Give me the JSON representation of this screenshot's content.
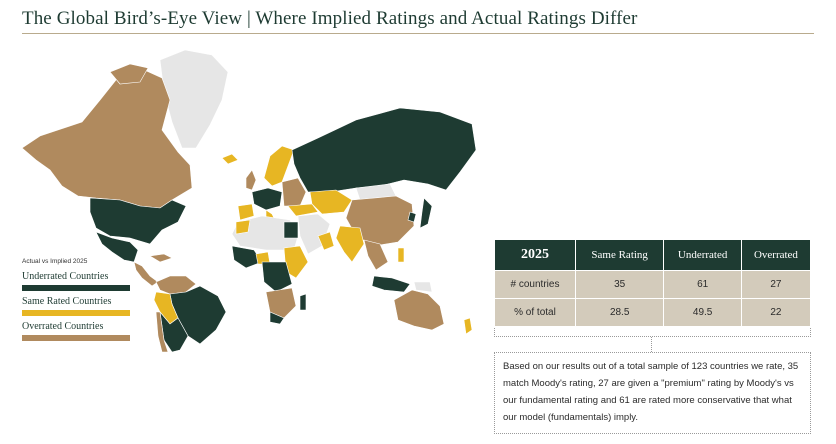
{
  "title": "The Global Bird’s-Eye View | Where Implied Ratings and Actual Ratings Differ",
  "colors": {
    "underrated": "#1e3b32",
    "same_rated": "#e7b623",
    "overrated": "#b08a5e",
    "no_data": "#e6e6e6",
    "title": "#1e3b32",
    "table_header": "#1e3b32",
    "table_cell": "#d3cbbb"
  },
  "legend": {
    "heading": "Actual vs Implied 2025",
    "items": [
      {
        "label": "Underrated Countries",
        "color": "#1e3b32"
      },
      {
        "label": "Same Rated Countries",
        "color": "#e7b623"
      },
      {
        "label": "Overrated Countries",
        "color": "#b08a5e"
      }
    ]
  },
  "table": {
    "headers": [
      "2025",
      "Same Rating",
      "Underrated",
      "Overrated"
    ],
    "rows": [
      [
        "# countries",
        "35",
        "61",
        "27"
      ],
      [
        "% of total",
        "28.5",
        "49.5",
        "22"
      ]
    ]
  },
  "note": "Based on our results out of a total sample of 123 countries we rate, 35 match Moody's rating, 27 are given a \"premium\" rating by Moody's vs our fundamental rating and 61 are rated more conservative that what our model (fundamentals) imply."
}
